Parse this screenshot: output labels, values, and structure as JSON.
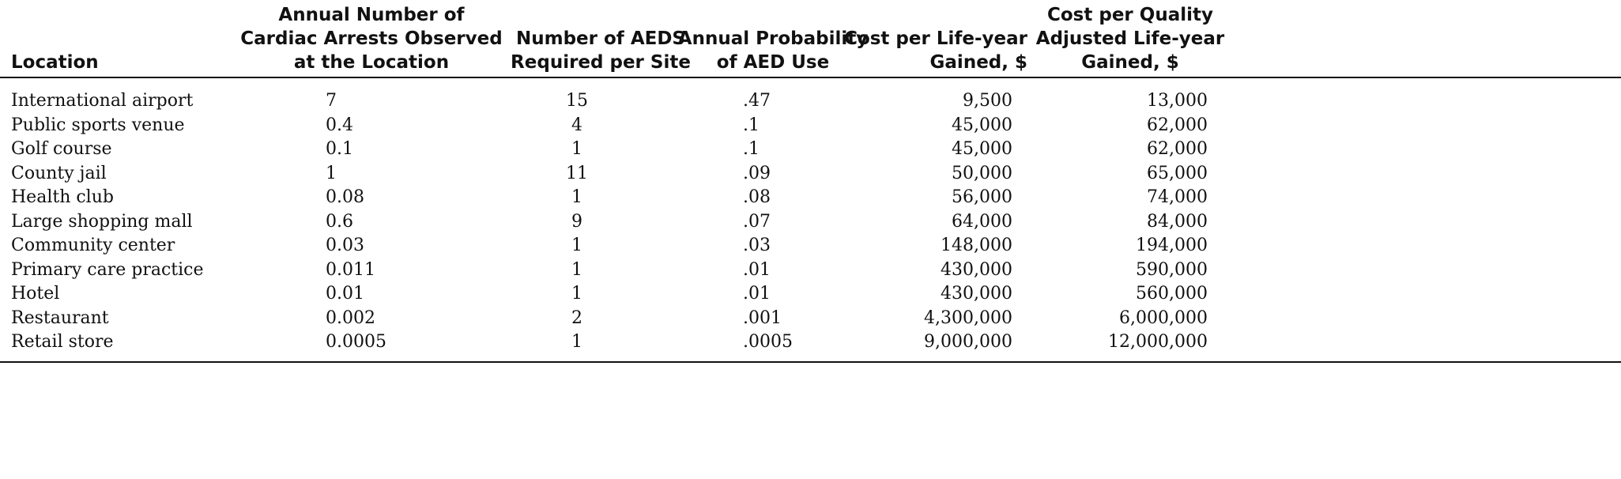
{
  "table": {
    "headers": {
      "location": "Location",
      "arrests": [
        "Annual Number of",
        "Cardiac Arrests Observed",
        "at the Location"
      ],
      "aeds": [
        "Number of AEDS",
        "Required per Site"
      ],
      "probability": [
        "Annual Probability",
        "of AED Use"
      ],
      "cost_life_year": [
        "Cost per Life-year",
        "Gained, $"
      ],
      "cost_qaly": [
        "Cost per Quality",
        "Adjusted Life-year",
        "Gained, $"
      ]
    },
    "rows": [
      {
        "location": "International airport",
        "arrests": "7",
        "aeds": "15",
        "probability": ".47",
        "cost_life_year": "9,500",
        "cost_qaly": "13,000"
      },
      {
        "location": "Public sports venue",
        "arrests": "0.4",
        "aeds": "4",
        "probability": ".1",
        "cost_life_year": "45,000",
        "cost_qaly": "62,000"
      },
      {
        "location": "Golf course",
        "arrests": "0.1",
        "aeds": "1",
        "probability": ".1",
        "cost_life_year": "45,000",
        "cost_qaly": "62,000"
      },
      {
        "location": "County jail",
        "arrests": "1",
        "aeds": "11",
        "probability": ".09",
        "cost_life_year": "50,000",
        "cost_qaly": "65,000"
      },
      {
        "location": "Health club",
        "arrests": "0.08",
        "aeds": "1",
        "probability": ".08",
        "cost_life_year": "56,000",
        "cost_qaly": "74,000"
      },
      {
        "location": "Large shopping mall",
        "arrests": "0.6",
        "aeds": "9",
        "probability": ".07",
        "cost_life_year": "64,000",
        "cost_qaly": "84,000"
      },
      {
        "location": "Community center",
        "arrests": "0.03",
        "aeds": "1",
        "probability": ".03",
        "cost_life_year": "148,000",
        "cost_qaly": "194,000"
      },
      {
        "location": "Primary care practice",
        "arrests": "0.011",
        "aeds": "1",
        "probability": ".01",
        "cost_life_year": "430,000",
        "cost_qaly": "590,000"
      },
      {
        "location": "Hotel",
        "arrests": "0.01",
        "aeds": "1",
        "probability": ".01",
        "cost_life_year": "430,000",
        "cost_qaly": "560,000"
      },
      {
        "location": "Restaurant",
        "arrests": "0.002",
        "aeds": "2",
        "probability": ".001",
        "cost_life_year": "4,300,000",
        "cost_qaly": "6,000,000"
      },
      {
        "location": "Retail store",
        "arrests": "0.0005",
        "aeds": "1",
        "probability": ".0005",
        "cost_life_year": "9,000,000",
        "cost_qaly": "12,000,000"
      }
    ]
  }
}
